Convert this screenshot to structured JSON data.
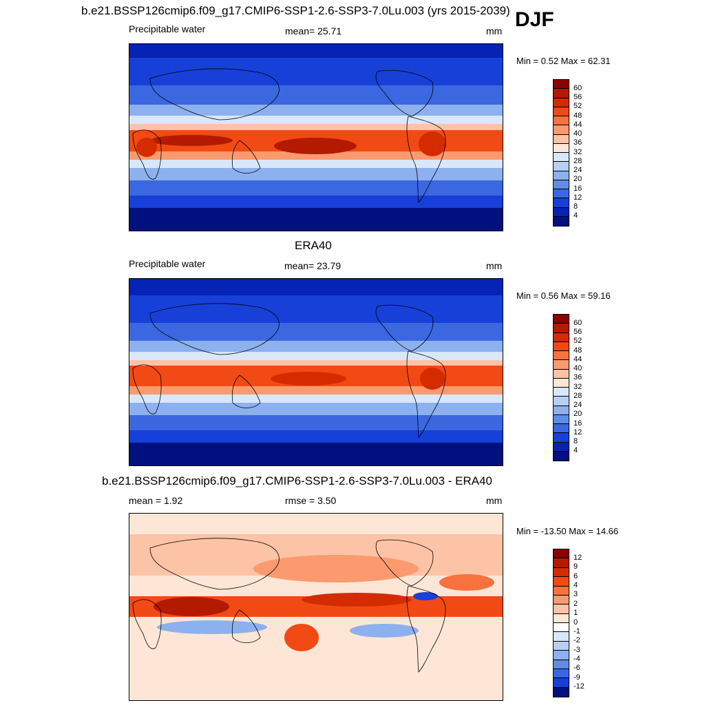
{
  "season": "DJF",
  "panels": [
    {
      "title": "b.e21.BSSP126cmip6.f09_g17.CMIP6-SSP1-2.6-SSP3-7.0Lu.003 (yrs 2015-2039)",
      "left_label": "Precipitable water",
      "center_label": "mean=  25.71",
      "units": "mm",
      "minmax": "Min =   0.52 Max =  62.31",
      "colorbar_labels": [
        "60",
        "56",
        "52",
        "48",
        "44",
        "40",
        "36",
        "32",
        "28",
        "24",
        "20",
        "16",
        "12",
        "8",
        "4"
      ]
    },
    {
      "title": "ERA40",
      "left_label": "Precipitable water",
      "center_label": "mean=  23.79",
      "units": "mm",
      "minmax": "Min =   0.56 Max =  59.16",
      "colorbar_labels": [
        "60",
        "56",
        "52",
        "48",
        "44",
        "40",
        "36",
        "32",
        "28",
        "24",
        "20",
        "16",
        "12",
        "8",
        "4"
      ]
    },
    {
      "title": "b.e21.BSSP126cmip6.f09_g17.CMIP6-SSP1-2.6-SSP3-7.0Lu.003 - ERA40",
      "left_label": "mean =   1.92",
      "center_label": "rmse =   3.50",
      "units": "mm",
      "minmax": "Min = -13.50 Max =  14.66",
      "colorbar_labels": [
        "12",
        "9",
        "6",
        "4",
        "3",
        "2",
        "1",
        "0",
        "-1",
        "-2",
        "-3",
        "-4",
        "-6",
        "-9",
        "-12"
      ]
    }
  ],
  "colors": {
    "abs_scale": [
      "#8b0000",
      "#b31a00",
      "#d42c00",
      "#f24a14",
      "#f7723f",
      "#fa9a6e",
      "#fcc3a6",
      "#fde6d6",
      "#d9e7fb",
      "#b7cff5",
      "#8db0ef",
      "#5f8de6",
      "#3b67e0",
      "#1740d8",
      "#0523b4",
      "#00107e"
    ],
    "diff_scale": [
      "#8b0000",
      "#b31a00",
      "#d42c00",
      "#f24a14",
      "#f7723f",
      "#fa9a6e",
      "#fcc3a6",
      "#fde6d6",
      "#ffffff",
      "#d9e7fb",
      "#b7cff5",
      "#8db0ef",
      "#5f8de6",
      "#3b67e0",
      "#1740d8",
      "#00107e"
    ]
  }
}
